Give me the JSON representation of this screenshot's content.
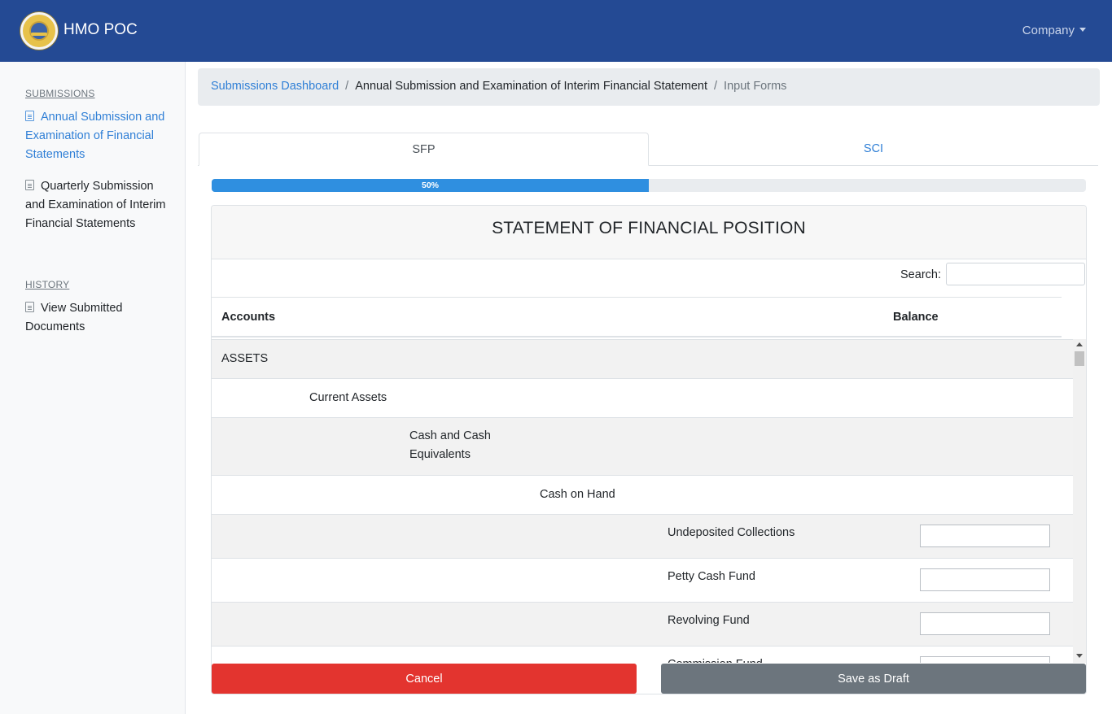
{
  "navbar": {
    "brand": "HMO POC",
    "company_menu": "Company"
  },
  "sidebar": {
    "submissions_heading": "SUBMISSIONS",
    "history_heading": "HISTORY",
    "items": [
      {
        "label": "Annual Submission and Examination of Financial Statements",
        "active": true
      },
      {
        "label": "Quarterly Submission and Examination of Interim Financial Statements",
        "active": false
      },
      {
        "label": "View Submitted Documents",
        "active": false
      }
    ]
  },
  "breadcrumb": {
    "home": "Submissions Dashboard",
    "middle": "Annual Submission and Examination of Interim Financial Statement",
    "current": "Input Forms"
  },
  "tabs": [
    {
      "label": "SFP",
      "active": true
    },
    {
      "label": "SCI",
      "active": false
    }
  ],
  "progress": {
    "value": 0.5,
    "label": "50%",
    "color": "#2f8fe0"
  },
  "card": {
    "title": "STATEMENT OF FINANCIAL POSITION",
    "search_label": "Search:",
    "columns": {
      "accounts": "Accounts",
      "balance": "Balance"
    },
    "rows": [
      {
        "label": "ASSETS",
        "level": 0
      },
      {
        "label": "Current Assets",
        "level": 1
      },
      {
        "label": "Cash and Cash Equivalents",
        "level": 2
      },
      {
        "label": "Cash on Hand",
        "level": 3
      },
      {
        "label": "Undeposited Collections",
        "level": 4,
        "input": true,
        "value": ""
      },
      {
        "label": "Petty Cash Fund",
        "level": 4,
        "input": true,
        "value": ""
      },
      {
        "label": "Revolving Fund",
        "level": 4,
        "input": true,
        "value": ""
      },
      {
        "label": "Commission Fund",
        "level": 4,
        "input": true,
        "value": ""
      }
    ]
  },
  "buttons": {
    "cancel": "Cancel",
    "save_draft": "Save as Draft"
  },
  "colors": {
    "navbar": "#244a94",
    "link": "#2f7fd6",
    "cancel": "#e3342f",
    "draft": "#6c757d"
  }
}
